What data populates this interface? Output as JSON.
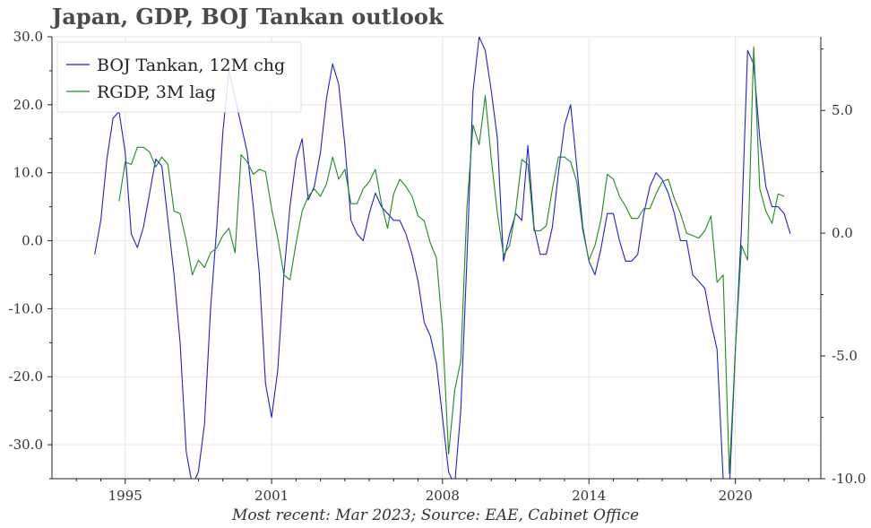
{
  "chart_data": {
    "type": "line",
    "title": "Japan, GDP, BOJ Tankan outlook",
    "source_note": "Most recent: Mar 2023; Source: EAE, Cabinet Office",
    "legend": {
      "placement": "top-left"
    },
    "grid": true,
    "x_axis": {
      "range": [
        1992.0,
        2023.5
      ],
      "tick_values": [
        1995,
        2001,
        2008,
        2014,
        2020
      ],
      "tick_labels": [
        "1995",
        "2001",
        "2008",
        "2014",
        "2020"
      ]
    },
    "y_left": {
      "range": [
        -35,
        30
      ],
      "tick_values": [
        30,
        20,
        10,
        0,
        -10,
        -20,
        -30
      ],
      "tick_labels": [
        "30.0",
        "20.0",
        "10.0",
        "0.0",
        "-10.0",
        "-20.0",
        "-30.0"
      ]
    },
    "y_right": {
      "range": [
        -10,
        8
      ],
      "tick_values": [
        5,
        0,
        -5,
        -10
      ],
      "tick_labels": [
        "5.0",
        "0.0",
        "-5.0",
        "-10.0"
      ]
    },
    "series": [
      {
        "name": "BOJ Tankan, 12M chg",
        "color": "#1f1fd6",
        "axis": "left",
        "points": [
          [
            1993.75,
            -2
          ],
          [
            1994.0,
            3
          ],
          [
            1994.25,
            12
          ],
          [
            1994.5,
            18
          ],
          [
            1994.75,
            19
          ],
          [
            1995.0,
            13
          ],
          [
            1995.25,
            1
          ],
          [
            1995.5,
            -1
          ],
          [
            1995.75,
            2
          ],
          [
            1996.0,
            7
          ],
          [
            1996.25,
            12
          ],
          [
            1996.5,
            11
          ],
          [
            1996.75,
            3
          ],
          [
            1997.0,
            -5
          ],
          [
            1997.25,
            -15
          ],
          [
            1997.5,
            -31
          ],
          [
            1997.75,
            -36
          ],
          [
            1998.0,
            -34
          ],
          [
            1998.25,
            -27
          ],
          [
            1998.5,
            -10
          ],
          [
            1998.75,
            2
          ],
          [
            1999.0,
            16
          ],
          [
            1999.25,
            25
          ],
          [
            1999.5,
            21
          ],
          [
            1999.75,
            17
          ],
          [
            2000.0,
            13
          ],
          [
            2000.25,
            5
          ],
          [
            2000.5,
            -5
          ],
          [
            2000.75,
            -21
          ],
          [
            2001.0,
            -26
          ],
          [
            2001.25,
            -19
          ],
          [
            2001.5,
            -5
          ],
          [
            2001.75,
            5
          ],
          [
            2002.0,
            12
          ],
          [
            2002.25,
            15
          ],
          [
            2002.5,
            6
          ],
          [
            2002.75,
            8
          ],
          [
            2003.0,
            13
          ],
          [
            2003.25,
            21
          ],
          [
            2003.5,
            26
          ],
          [
            2003.75,
            23
          ],
          [
            2004.0,
            14
          ],
          [
            2004.25,
            3
          ],
          [
            2004.5,
            1
          ],
          [
            2004.75,
            0
          ],
          [
            2005.0,
            4
          ],
          [
            2005.25,
            7
          ],
          [
            2005.5,
            5
          ],
          [
            2005.75,
            4
          ],
          [
            2006.0,
            3
          ],
          [
            2006.25,
            3
          ],
          [
            2006.5,
            1
          ],
          [
            2006.75,
            -2
          ],
          [
            2007.0,
            -6
          ],
          [
            2007.25,
            -12
          ],
          [
            2007.5,
            -14
          ],
          [
            2007.75,
            -18
          ],
          [
            2008.0,
            -26
          ],
          [
            2008.25,
            -34
          ],
          [
            2008.5,
            -36
          ],
          [
            2008.75,
            -25
          ],
          [
            2009.0,
            -3
          ],
          [
            2009.25,
            22
          ],
          [
            2009.5,
            30
          ],
          [
            2009.75,
            28
          ],
          [
            2010.0,
            22
          ],
          [
            2010.25,
            15
          ],
          [
            2010.5,
            -3
          ],
          [
            2010.75,
            1
          ],
          [
            2011.0,
            4
          ],
          [
            2011.25,
            3
          ],
          [
            2011.5,
            14
          ],
          [
            2011.75,
            2
          ],
          [
            2012.0,
            -2
          ],
          [
            2012.25,
            -2
          ],
          [
            2012.5,
            2
          ],
          [
            2012.75,
            10
          ],
          [
            2013.0,
            17
          ],
          [
            2013.25,
            20
          ],
          [
            2013.5,
            11
          ],
          [
            2013.75,
            2
          ],
          [
            2014.0,
            -3
          ],
          [
            2014.25,
            -5
          ],
          [
            2014.5,
            -1
          ],
          [
            2014.75,
            4
          ],
          [
            2015.0,
            4
          ],
          [
            2015.25,
            0
          ],
          [
            2015.5,
            -3
          ],
          [
            2015.75,
            -3
          ],
          [
            2016.0,
            -2
          ],
          [
            2016.25,
            4
          ],
          [
            2016.5,
            8
          ],
          [
            2016.75,
            10
          ],
          [
            2017.0,
            9
          ],
          [
            2017.25,
            7
          ],
          [
            2017.5,
            4
          ],
          [
            2017.75,
            0
          ],
          [
            2018.0,
            0
          ],
          [
            2018.25,
            -5
          ],
          [
            2018.5,
            -6
          ],
          [
            2018.75,
            -7
          ],
          [
            2019.0,
            -12
          ],
          [
            2019.25,
            -16
          ],
          [
            2019.5,
            -35
          ],
          [
            2019.75,
            -37
          ],
          [
            2020.0,
            -16
          ],
          [
            2020.25,
            2
          ],
          [
            2020.5,
            28
          ],
          [
            2020.75,
            26
          ],
          [
            2021.0,
            15
          ],
          [
            2021.25,
            8
          ],
          [
            2021.5,
            5
          ],
          [
            2021.75,
            5
          ],
          [
            2022.0,
            4
          ],
          [
            2022.25,
            1
          ]
        ]
      },
      {
        "name": "RGDP, 3M lag",
        "color": "#1f8a1f",
        "axis": "right",
        "points": [
          [
            1994.75,
            1.3
          ],
          [
            1995.0,
            2.9
          ],
          [
            1995.25,
            2.8
          ],
          [
            1995.5,
            3.5
          ],
          [
            1995.75,
            3.5
          ],
          [
            1996.0,
            3.3
          ],
          [
            1996.25,
            2.7
          ],
          [
            1996.5,
            3.1
          ],
          [
            1996.75,
            2.8
          ],
          [
            1997.0,
            0.9
          ],
          [
            1997.25,
            0.8
          ],
          [
            1997.5,
            -0.3
          ],
          [
            1997.75,
            -1.7
          ],
          [
            1998.0,
            -1.1
          ],
          [
            1998.25,
            -1.4
          ],
          [
            1998.5,
            -0.8
          ],
          [
            1998.75,
            -0.6
          ],
          [
            1999.0,
            -0.1
          ],
          [
            1999.25,
            0.2
          ],
          [
            1999.5,
            -0.8
          ],
          [
            1999.75,
            3.2
          ],
          [
            2000.0,
            2.9
          ],
          [
            2000.25,
            2.4
          ],
          [
            2000.5,
            2.6
          ],
          [
            2000.75,
            2.5
          ],
          [
            2001.0,
            1.0
          ],
          [
            2001.25,
            -0.2
          ],
          [
            2001.5,
            -1.7
          ],
          [
            2001.75,
            -1.9
          ],
          [
            2002.0,
            -0.4
          ],
          [
            2002.25,
            0.9
          ],
          [
            2002.5,
            1.5
          ],
          [
            2002.75,
            1.8
          ],
          [
            2003.0,
            1.5
          ],
          [
            2003.25,
            2.0
          ],
          [
            2003.5,
            3.1
          ],
          [
            2003.75,
            2.2
          ],
          [
            2004.0,
            2.6
          ],
          [
            2004.25,
            1.2
          ],
          [
            2004.5,
            1.2
          ],
          [
            2004.75,
            1.8
          ],
          [
            2005.0,
            2.1
          ],
          [
            2005.25,
            2.6
          ],
          [
            2005.5,
            1.2
          ],
          [
            2005.75,
            0.2
          ],
          [
            2006.0,
            1.6
          ],
          [
            2006.25,
            2.2
          ],
          [
            2006.5,
            1.9
          ],
          [
            2006.75,
            1.5
          ],
          [
            2007.0,
            0.7
          ],
          [
            2007.25,
            0.5
          ],
          [
            2007.5,
            -0.4
          ],
          [
            2007.75,
            -1.0
          ],
          [
            2008.0,
            -3.9
          ],
          [
            2008.25,
            -9.0
          ],
          [
            2008.5,
            -6.4
          ],
          [
            2008.75,
            -5.2
          ],
          [
            2009.0,
            1.0
          ],
          [
            2009.25,
            4.4
          ],
          [
            2009.5,
            3.6
          ],
          [
            2009.75,
            5.6
          ],
          [
            2010.0,
            3.0
          ],
          [
            2010.25,
            0.8
          ],
          [
            2010.5,
            -0.9
          ],
          [
            2010.75,
            -0.5
          ],
          [
            2011.0,
            0.9
          ],
          [
            2011.25,
            3.0
          ],
          [
            2011.5,
            2.8
          ],
          [
            2011.75,
            0.1
          ],
          [
            2012.0,
            0.1
          ],
          [
            2012.25,
            0.3
          ],
          [
            2012.5,
            1.8
          ],
          [
            2012.75,
            3.1
          ],
          [
            2013.0,
            3.1
          ],
          [
            2013.25,
            2.9
          ],
          [
            2013.5,
            2.1
          ],
          [
            2013.75,
            0.1
          ],
          [
            2014.0,
            -1.1
          ],
          [
            2014.25,
            -0.5
          ],
          [
            2014.5,
            0.6
          ],
          [
            2014.75,
            2.4
          ],
          [
            2015.0,
            2.2
          ],
          [
            2015.25,
            1.5
          ],
          [
            2015.5,
            1.1
          ],
          [
            2015.75,
            0.6
          ],
          [
            2016.0,
            0.6
          ],
          [
            2016.25,
            1.0
          ],
          [
            2016.5,
            1.0
          ],
          [
            2016.75,
            1.6
          ],
          [
            2017.0,
            2.1
          ],
          [
            2017.25,
            2.2
          ],
          [
            2017.5,
            1.4
          ],
          [
            2017.75,
            0.8
          ],
          [
            2018.0,
            0.0
          ],
          [
            2018.25,
            -0.1
          ],
          [
            2018.5,
            -0.2
          ],
          [
            2018.75,
            0.1
          ],
          [
            2019.0,
            0.7
          ],
          [
            2019.25,
            -2.0
          ],
          [
            2019.5,
            -1.7
          ],
          [
            2019.75,
            -9.8
          ],
          [
            2020.0,
            -4.7
          ],
          [
            2020.25,
            -0.5
          ],
          [
            2020.5,
            -1.1
          ],
          [
            2020.75,
            7.6
          ],
          [
            2021.0,
            1.8
          ],
          [
            2021.25,
            0.9
          ],
          [
            2021.5,
            0.4
          ],
          [
            2021.75,
            1.6
          ],
          [
            2022.0,
            1.5
          ]
        ]
      }
    ]
  }
}
